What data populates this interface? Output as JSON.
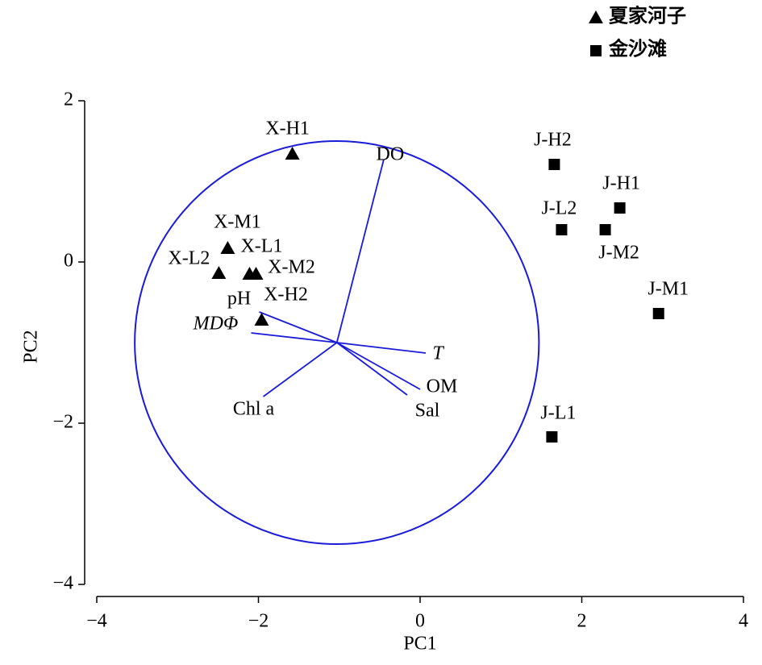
{
  "chart_data": {
    "type": "biplot",
    "x_label": "PC1",
    "y_label": "PC2",
    "xlim": [
      -4,
      4
    ],
    "ylim": [
      -4,
      2
    ],
    "xticks": [
      {
        "value": -4,
        "label": "−4"
      },
      {
        "value": -2,
        "label": "−2"
      },
      0,
      2,
      4
    ],
    "yticks": [
      {
        "value": -4,
        "label": "−4"
      },
      {
        "value": -2,
        "label": "−2"
      },
      0,
      2
    ],
    "legend": "top-right",
    "series": [
      {
        "name": "夏家河子",
        "marker": "triangle",
        "color": "#000000",
        "labels": [
          "X-H1",
          "X-M1",
          "X-L1",
          "X-L2",
          "X-M2",
          "X-H2"
        ],
        "x": [
          -1.58,
          -2.38,
          -2.11,
          -2.49,
          -2.03,
          -1.96
        ],
        "y": [
          1.34,
          0.17,
          -0.15,
          -0.14,
          -0.15,
          -0.72
        ]
      },
      {
        "name": "金沙滩",
        "marker": "square",
        "color": "#000000",
        "labels": [
          "J-H2",
          "J-H1",
          "J-L2",
          "J-M2",
          "J-M1",
          "J-L1"
        ],
        "x": [
          1.66,
          2.47,
          1.75,
          2.29,
          2.95,
          1.63
        ],
        "y": [
          1.21,
          0.67,
          0.4,
          0.4,
          -0.64,
          -2.17
        ]
      }
    ],
    "circle": {
      "center": [
        -1.03,
        -1.0
      ],
      "radius": 2.5,
      "color": "#1a1adb"
    },
    "loadings": {
      "color": "#1a1adb",
      "names": [
        "DO",
        "pH",
        "MDΦ",
        "T",
        "OM",
        "Sal",
        "Chl a"
      ],
      "x": [
        -0.45,
        -1.99,
        -2.09,
        0.07,
        0.0,
        -0.16,
        -1.94
      ],
      "y": [
        1.27,
        -0.62,
        -0.88,
        -1.13,
        -1.58,
        -1.65,
        -1.67
      ]
    }
  }
}
